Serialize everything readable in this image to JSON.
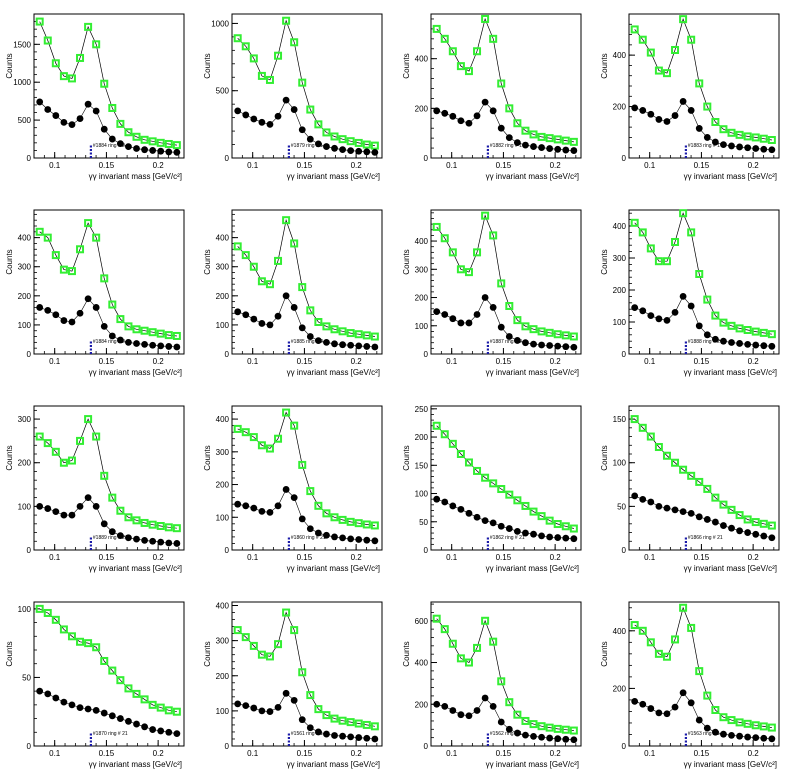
{
  "colors": {
    "background": "#ffffff",
    "dark_series": "#000000",
    "light_series": "#33ee33",
    "marker_blue": "#1a1aa8",
    "marker_red": "#cc2222"
  },
  "panel_axes": {
    "xlabel": "γγ invariant mass [GeV/c²]",
    "ylabel": "Counts",
    "xlim": [
      0.08,
      0.225
    ],
    "xticks": [
      0.1,
      0.15,
      0.2
    ]
  },
  "chart_data": [
    {
      "type": "scatter",
      "ylim": [
        0,
        1900
      ],
      "yticks": [
        500,
        1000,
        1500
      ],
      "series": [
        {
          "values": [
            740,
            640,
            560,
            470,
            440,
            520,
            710,
            620,
            380,
            250,
            190,
            150,
            125,
            110,
            100,
            90,
            80,
            75
          ]
        },
        {
          "values": [
            1800,
            1550,
            1250,
            1080,
            1050,
            1320,
            1730,
            1500,
            980,
            660,
            450,
            340,
            280,
            240,
            220,
            200,
            185,
            170
          ]
        }
      ],
      "annotation": "#1884 ring # 2"
    },
    {
      "type": "scatter",
      "ylim": [
        0,
        1070
      ],
      "yticks": [
        500,
        1000
      ],
      "series": [
        {
          "values": [
            350,
            320,
            290,
            265,
            250,
            310,
            430,
            360,
            210,
            140,
            105,
            85,
            72,
            62,
            55,
            50,
            46,
            42
          ]
        },
        {
          "values": [
            890,
            830,
            740,
            610,
            580,
            760,
            1020,
            860,
            560,
            360,
            250,
            190,
            160,
            140,
            125,
            112,
            100,
            92
          ]
        }
      ],
      "annotation": "#1879 ring # 1"
    },
    {
      "type": "scatter",
      "ylim": [
        0,
        580
      ],
      "yticks": [
        200,
        400
      ],
      "series": [
        {
          "values": [
            190,
            180,
            168,
            150,
            140,
            170,
            225,
            190,
            120,
            82,
            62,
            52,
            46,
            42,
            38,
            35,
            32,
            30
          ]
        },
        {
          "values": [
            520,
            480,
            430,
            370,
            350,
            430,
            560,
            480,
            300,
            200,
            140,
            110,
            95,
            85,
            80,
            75,
            70,
            65
          ]
        }
      ],
      "annotation": "#1882 ring # 1"
    },
    {
      "type": "scatter",
      "ylim": [
        0,
        560
      ],
      "yticks": [
        200,
        400
      ],
      "series": [
        {
          "values": [
            195,
            185,
            170,
            150,
            142,
            165,
            220,
            185,
            115,
            80,
            62,
            52,
            47,
            43,
            40,
            37,
            34,
            32
          ]
        },
        {
          "values": [
            500,
            460,
            410,
            340,
            330,
            420,
            540,
            460,
            290,
            200,
            140,
            112,
            98,
            90,
            84,
            80,
            75,
            70
          ]
        }
      ],
      "annotation": "#1883 ring # 1"
    },
    {
      "type": "scatter",
      "ylim": [
        0,
        495
      ],
      "yticks": [
        100,
        200,
        300,
        400
      ],
      "series": [
        {
          "values": [
            160,
            150,
            135,
            115,
            110,
            140,
            190,
            160,
            95,
            62,
            48,
            40,
            36,
            33,
            30,
            28,
            26,
            24
          ]
        },
        {
          "values": [
            420,
            400,
            340,
            290,
            285,
            360,
            450,
            400,
            260,
            170,
            120,
            95,
            85,
            80,
            75,
            70,
            65,
            62
          ]
        }
      ],
      "annotation": "#1884 ring # 2"
    },
    {
      "type": "scatter",
      "ylim": [
        0,
        495
      ],
      "yticks": [
        100,
        200,
        300,
        400
      ],
      "series": [
        {
          "values": [
            145,
            135,
            120,
            105,
            100,
            130,
            200,
            160,
            90,
            60,
            46,
            40,
            35,
            32,
            30,
            28,
            26,
            24
          ]
        },
        {
          "values": [
            370,
            340,
            300,
            250,
            240,
            320,
            460,
            380,
            230,
            150,
            110,
            95,
            85,
            78,
            72,
            68,
            64,
            60
          ]
        }
      ],
      "annotation": "#1885 ring # 2"
    },
    {
      "type": "scatter",
      "ylim": [
        0,
        510
      ],
      "yticks": [
        100,
        200,
        300,
        400
      ],
      "series": [
        {
          "values": [
            150,
            140,
            125,
            110,
            110,
            140,
            200,
            165,
            95,
            62,
            48,
            40,
            35,
            32,
            30,
            28,
            26,
            24
          ]
        },
        {
          "values": [
            450,
            410,
            360,
            300,
            290,
            360,
            490,
            420,
            250,
            170,
            120,
            98,
            88,
            80,
            75,
            70,
            66,
            62
          ]
        }
      ],
      "annotation": "#1887 ring # 2"
    },
    {
      "type": "scatter",
      "ylim": [
        0,
        450
      ],
      "yticks": [
        100,
        200,
        300,
        400
      ],
      "series": [
        {
          "values": [
            145,
            135,
            120,
            110,
            105,
            130,
            180,
            150,
            88,
            60,
            46,
            40,
            36,
            33,
            30,
            28,
            26,
            24
          ]
        },
        {
          "values": [
            410,
            380,
            330,
            290,
            290,
            350,
            440,
            380,
            250,
            170,
            120,
            98,
            88,
            80,
            75,
            70,
            66,
            62
          ]
        }
      ],
      "annotation": "#1888 ring # 2"
    },
    {
      "type": "scatter",
      "ylim": [
        0,
        330
      ],
      "yticks": [
        100,
        200,
        300
      ],
      "series": [
        {
          "values": [
            100,
            95,
            88,
            80,
            80,
            100,
            120,
            100,
            60,
            42,
            33,
            28,
            25,
            22,
            20,
            18,
            16,
            15
          ]
        },
        {
          "values": [
            260,
            245,
            225,
            200,
            205,
            250,
            300,
            260,
            170,
            120,
            90,
            75,
            68,
            62,
            58,
            55,
            52,
            50
          ]
        }
      ],
      "annotation": "#1889 ring # 21"
    },
    {
      "type": "scatter",
      "ylim": [
        0,
        440
      ],
      "yticks": [
        100,
        200,
        300,
        400
      ],
      "series": [
        {
          "values": [
            140,
            135,
            128,
            118,
            115,
            135,
            185,
            160,
            95,
            65,
            52,
            45,
            40,
            37,
            34,
            32,
            30,
            28
          ]
        },
        {
          "values": [
            370,
            360,
            345,
            320,
            310,
            340,
            420,
            380,
            260,
            180,
            135,
            112,
            100,
            92,
            86,
            82,
            78,
            75
          ]
        }
      ],
      "annotation": "#1860 ring # 21"
    },
    {
      "type": "scatter",
      "ylim": [
        0,
        255
      ],
      "yticks": [
        50,
        100,
        150,
        200,
        250
      ],
      "series": [
        {
          "values": [
            90,
            85,
            78,
            72,
            65,
            58,
            52,
            48,
            42,
            38,
            33,
            30,
            28,
            25,
            23,
            22,
            21,
            20
          ]
        },
        {
          "values": [
            220,
            205,
            188,
            170,
            155,
            140,
            128,
            118,
            108,
            98,
            88,
            78,
            68,
            60,
            52,
            46,
            42,
            38
          ]
        }
      ],
      "annotation": "#1862 ring # 21"
    },
    {
      "type": "scatter",
      "ylim": [
        0,
        165
      ],
      "yticks": [
        50,
        100,
        150
      ],
      "series": [
        {
          "values": [
            62,
            58,
            55,
            50,
            48,
            46,
            44,
            42,
            38,
            35,
            32,
            28,
            25,
            22,
            20,
            18,
            16,
            14
          ]
        },
        {
          "values": [
            150,
            140,
            130,
            118,
            108,
            100,
            92,
            85,
            78,
            70,
            60,
            52,
            46,
            40,
            35,
            32,
            30,
            28
          ]
        }
      ],
      "annotation": "#1866 ring # 21"
    },
    {
      "type": "scatter",
      "ylim": [
        0,
        105
      ],
      "yticks": [
        50,
        100
      ],
      "series": [
        {
          "values": [
            40,
            38,
            35,
            32,
            30,
            28,
            27,
            26,
            24,
            22,
            20,
            18,
            16,
            14,
            12,
            11,
            10,
            9
          ]
        },
        {
          "values": [
            100,
            97,
            92,
            85,
            80,
            76,
            75,
            72,
            62,
            55,
            48,
            42,
            38,
            34,
            30,
            28,
            26,
            25
          ]
        }
      ],
      "annotation": "#1870 ring # 21"
    },
    {
      "type": "scatter",
      "ylim": [
        0,
        410
      ],
      "yticks": [
        100,
        200,
        300,
        400
      ],
      "series": [
        {
          "values": [
            120,
            115,
            108,
            100,
            98,
            110,
            150,
            130,
            75,
            52,
            40,
            34,
            30,
            28,
            26,
            24,
            22,
            20
          ]
        },
        {
          "values": [
            330,
            310,
            285,
            260,
            255,
            290,
            380,
            330,
            210,
            145,
            105,
            88,
            78,
            72,
            68,
            64,
            60,
            56
          ]
        }
      ],
      "annotation": "#1561 ring # 1"
    },
    {
      "type": "scatter",
      "ylim": [
        0,
        690
      ],
      "yticks": [
        200,
        400,
        600
      ],
      "series": [
        {
          "values": [
            200,
            190,
            170,
            150,
            145,
            170,
            230,
            190,
            115,
            80,
            62,
            52,
            46,
            42,
            38,
            35,
            32,
            30
          ]
        },
        {
          "values": [
            610,
            560,
            490,
            420,
            400,
            470,
            600,
            500,
            310,
            210,
            150,
            120,
            105,
            95,
            88,
            82,
            78,
            74
          ]
        }
      ],
      "annotation": "#1562 ring # 1"
    },
    {
      "type": "scatter",
      "ylim": [
        0,
        500
      ],
      "yticks": [
        200,
        400
      ],
      "series": [
        {
          "values": [
            155,
            145,
            130,
            115,
            112,
            135,
            185,
            150,
            90,
            62,
            48,
            41,
            37,
            34,
            31,
            29,
            27,
            25
          ]
        },
        {
          "values": [
            420,
            400,
            360,
            320,
            310,
            370,
            480,
            410,
            260,
            175,
            125,
            100,
            90,
            82,
            77,
            72,
            68,
            64
          ]
        }
      ],
      "annotation": "#1563 ring # 1"
    }
  ]
}
